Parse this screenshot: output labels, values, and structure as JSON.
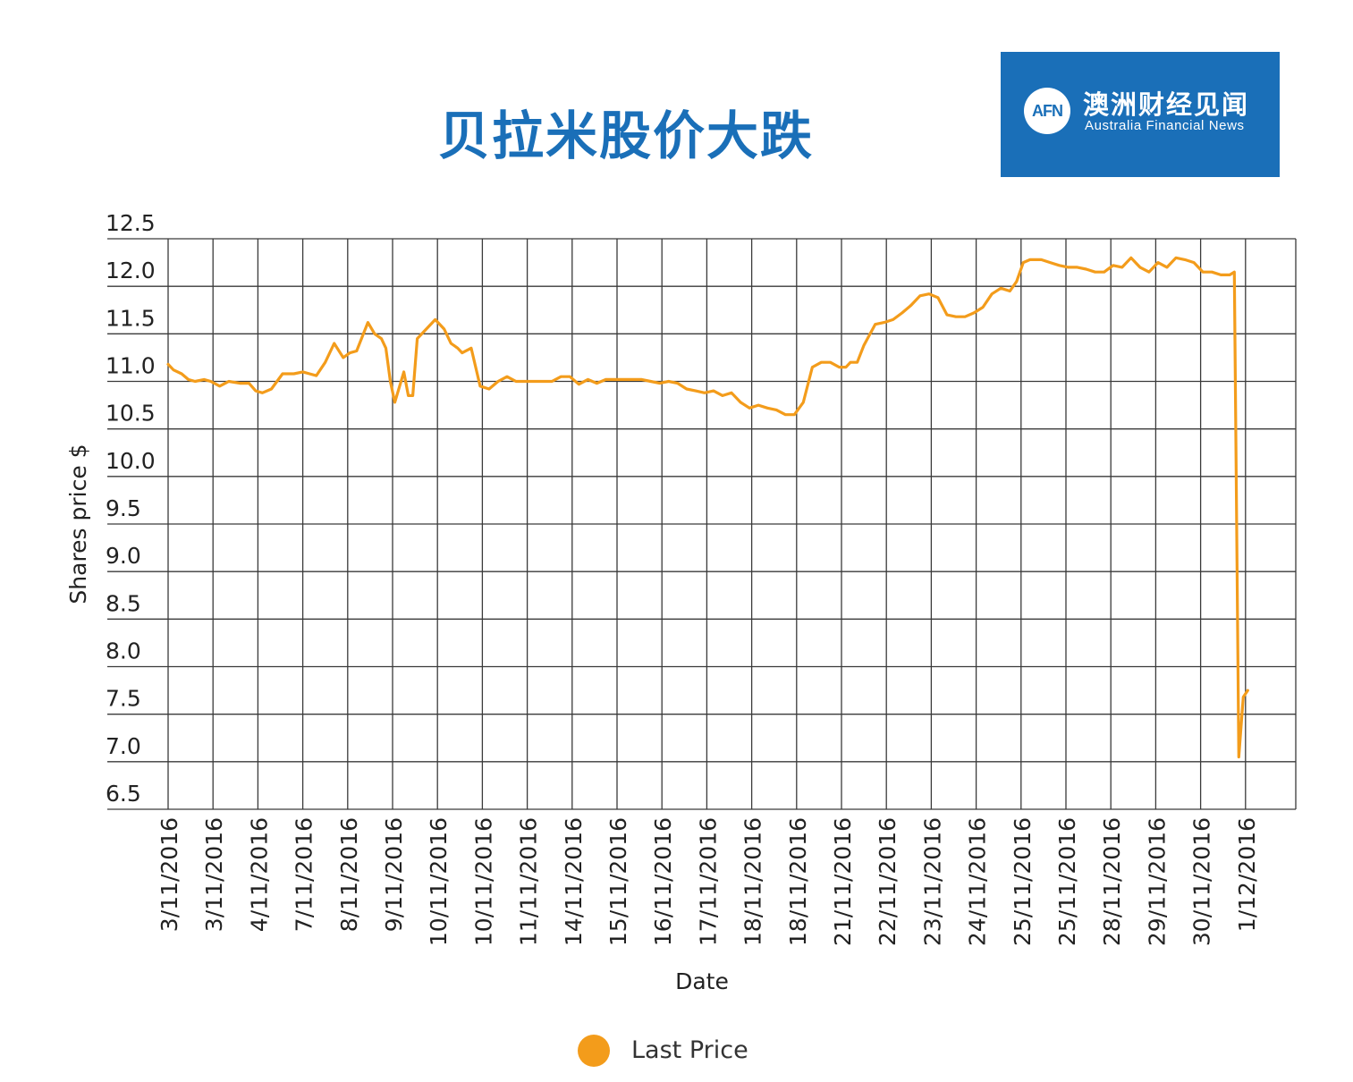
{
  "title": "贝拉米股价大跌",
  "logo": {
    "mark": "AFN",
    "name_cn": "澳洲财经见闻",
    "name_en": "Australia Financial News",
    "background_color": "#1a6fb8"
  },
  "chart_data": {
    "type": "line",
    "title": "",
    "xlabel": "Date",
    "ylabel": "Shares price $",
    "ylim": [
      6.5,
      12.5
    ],
    "yticks": [
      6.5,
      7.0,
      7.5,
      8.0,
      8.5,
      9.0,
      9.5,
      10.0,
      10.5,
      11.0,
      11.5,
      12.0,
      12.5
    ],
    "ytick_labels": [
      "6.5",
      "7.0",
      "7.5",
      "8.0",
      "8.5",
      "9.0",
      "9.5",
      "10.0",
      "10.5",
      "11.0",
      "11.5",
      "12.0",
      "12.5"
    ],
    "grid": true,
    "categories": [
      "3/11/2016",
      "3/11/2016",
      "4/11/2016",
      "7/11/2016",
      "8/11/2016",
      "9/11/2016",
      "10/11/2016",
      "10/11/2016",
      "11/11/2016",
      "14/11/2016",
      "15/11/2016",
      "16/11/2016",
      "17/11/2016",
      "18/11/2016",
      "18/11/2016",
      "21/11/2016",
      "22/11/2016",
      "23/11/2016",
      "24/11/2016",
      "25/11/2016",
      "25/11/2016",
      "28/11/2016",
      "29/11/2016",
      "30/11/2016",
      "1/12/2016"
    ],
    "legend_position": "bottom",
    "series": [
      {
        "name": "Last Price",
        "color": "#f39c1b",
        "points": [
          [
            0,
            11.18
          ],
          [
            0.12,
            11.12
          ],
          [
            0.3,
            11.08
          ],
          [
            0.45,
            11.02
          ],
          [
            0.6,
            11.0
          ],
          [
            0.8,
            11.02
          ],
          [
            0.95,
            11.0
          ],
          [
            1.15,
            10.95
          ],
          [
            1.35,
            11.0
          ],
          [
            1.6,
            10.98
          ],
          [
            1.8,
            10.98
          ],
          [
            1.95,
            10.9
          ],
          [
            2.1,
            10.88
          ],
          [
            2.3,
            10.92
          ],
          [
            2.55,
            11.08
          ],
          [
            2.8,
            11.08
          ],
          [
            3.0,
            11.1
          ],
          [
            3.15,
            11.08
          ],
          [
            3.3,
            11.06
          ],
          [
            3.5,
            11.2
          ],
          [
            3.7,
            11.4
          ],
          [
            3.9,
            11.25
          ],
          [
            4.05,
            11.3
          ],
          [
            4.2,
            11.32
          ],
          [
            4.45,
            11.62
          ],
          [
            4.6,
            11.5
          ],
          [
            4.75,
            11.45
          ],
          [
            4.85,
            11.35
          ],
          [
            4.95,
            11.0
          ],
          [
            5.05,
            10.78
          ],
          [
            5.25,
            11.1
          ],
          [
            5.35,
            10.85
          ],
          [
            5.45,
            10.85
          ],
          [
            5.55,
            11.45
          ],
          [
            5.75,
            11.55
          ],
          [
            5.95,
            11.65
          ],
          [
            6.15,
            11.55
          ],
          [
            6.3,
            11.4
          ],
          [
            6.45,
            11.35
          ],
          [
            6.55,
            11.3
          ],
          [
            6.75,
            11.35
          ],
          [
            6.95,
            10.95
          ],
          [
            7.15,
            10.92
          ],
          [
            7.35,
            11.0
          ],
          [
            7.55,
            11.05
          ],
          [
            7.75,
            11.0
          ],
          [
            7.95,
            11.0
          ],
          [
            8.15,
            11.0
          ],
          [
            8.35,
            11.0
          ],
          [
            8.55,
            11.0
          ],
          [
            8.75,
            11.05
          ],
          [
            8.95,
            11.05
          ],
          [
            9.15,
            10.97
          ],
          [
            9.35,
            11.02
          ],
          [
            9.55,
            10.98
          ],
          [
            9.75,
            11.02
          ],
          [
            9.95,
            11.02
          ],
          [
            10.15,
            11.02
          ],
          [
            10.35,
            11.02
          ],
          [
            10.55,
            11.02
          ],
          [
            10.75,
            11.0
          ],
          [
            10.95,
            10.98
          ],
          [
            11.15,
            11.0
          ],
          [
            11.35,
            10.98
          ],
          [
            11.55,
            10.92
          ],
          [
            11.75,
            10.9
          ],
          [
            11.95,
            10.88
          ],
          [
            12.15,
            10.9
          ],
          [
            12.35,
            10.85
          ],
          [
            12.55,
            10.88
          ],
          [
            12.75,
            10.78
          ],
          [
            12.95,
            10.72
          ],
          [
            13.15,
            10.75
          ],
          [
            13.35,
            10.72
          ],
          [
            13.55,
            10.7
          ],
          [
            13.75,
            10.65
          ],
          [
            13.95,
            10.65
          ],
          [
            14.15,
            10.78
          ],
          [
            14.35,
            11.15
          ],
          [
            14.55,
            11.2
          ],
          [
            14.75,
            11.2
          ],
          [
            14.95,
            11.15
          ],
          [
            15.1,
            11.15
          ],
          [
            15.2,
            11.2
          ],
          [
            15.35,
            11.2
          ],
          [
            15.5,
            11.38
          ],
          [
            15.75,
            11.6
          ],
          [
            15.95,
            11.62
          ],
          [
            16.15,
            11.65
          ],
          [
            16.35,
            11.72
          ],
          [
            16.55,
            11.8
          ],
          [
            16.75,
            11.9
          ],
          [
            16.95,
            11.92
          ],
          [
            17.15,
            11.88
          ],
          [
            17.35,
            11.7
          ],
          [
            17.55,
            11.68
          ],
          [
            17.75,
            11.68
          ],
          [
            17.95,
            11.72
          ],
          [
            18.15,
            11.78
          ],
          [
            18.35,
            11.92
          ],
          [
            18.55,
            11.98
          ],
          [
            18.75,
            11.95
          ],
          [
            18.9,
            12.05
          ],
          [
            19.05,
            12.25
          ],
          [
            19.2,
            12.28
          ],
          [
            19.45,
            12.28
          ],
          [
            19.65,
            12.25
          ],
          [
            19.85,
            12.22
          ],
          [
            20.05,
            12.2
          ],
          [
            20.25,
            12.2
          ],
          [
            20.45,
            12.18
          ],
          [
            20.65,
            12.15
          ],
          [
            20.85,
            12.15
          ],
          [
            21.05,
            12.22
          ],
          [
            21.25,
            12.2
          ],
          [
            21.45,
            12.3
          ],
          [
            21.65,
            12.2
          ],
          [
            21.85,
            12.15
          ],
          [
            22.05,
            12.25
          ],
          [
            22.25,
            12.2
          ],
          [
            22.45,
            12.3
          ],
          [
            22.65,
            12.28
          ],
          [
            22.85,
            12.25
          ],
          [
            23.05,
            12.15
          ],
          [
            23.25,
            12.15
          ],
          [
            23.45,
            12.12
          ],
          [
            23.65,
            12.12
          ],
          [
            23.75,
            12.15
          ],
          [
            23.85,
            7.05
          ],
          [
            23.95,
            7.68
          ],
          [
            24.05,
            7.75
          ]
        ]
      }
    ]
  }
}
